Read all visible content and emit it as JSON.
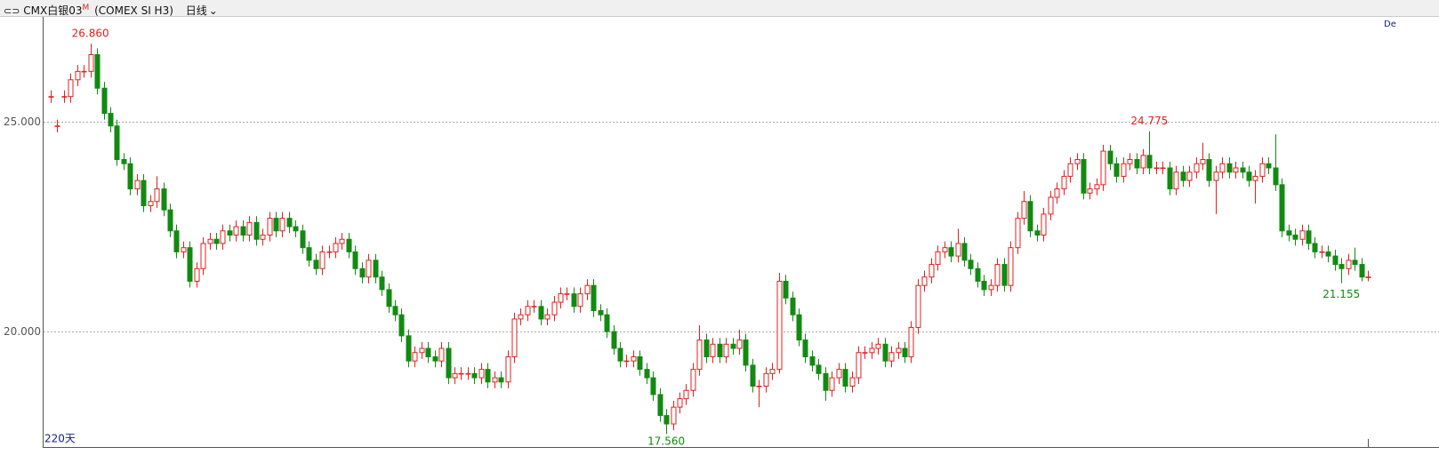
{
  "header": {
    "symbol": "CMX白银03",
    "flag": "M",
    "contract": "(COMEX SI H3)",
    "period": "日线"
  },
  "side_note": "De",
  "chart_data": {
    "type": "candlestick",
    "span_label": "220天",
    "up_color": "#e02020",
    "down_color": "#118a11",
    "ylim": [
      17.25,
      27.52
    ],
    "yticks": [
      {
        "value": 25,
        "label": "25.000"
      },
      {
        "value": 20,
        "label": "20.000"
      }
    ],
    "grid": true,
    "high_labels": [
      {
        "value": 26.86,
        "label": "26.860"
      },
      {
        "value": 24.775,
        "label": "24.775"
      }
    ],
    "low_labels": [
      {
        "value": 17.56,
        "label": "17.560"
      },
      {
        "value": 21.155,
        "label": "21.155"
      }
    ],
    "open": [
      25.6,
      24.9,
      25.6,
      25.6,
      26.0,
      26.2,
      26.2,
      26.6,
      25.8,
      25.2,
      24.9,
      24.1,
      24.0,
      23.4,
      23.6,
      23.0,
      23.1,
      23.4,
      22.9,
      22.4,
      21.9,
      22.0,
      21.2,
      21.5,
      22.1,
      22.2,
      22.1,
      22.4,
      22.3,
      22.5,
      22.3,
      22.6,
      22.2,
      22.3,
      22.7,
      22.4,
      22.7,
      22.5,
      22.4,
      22.0,
      21.7,
      21.5,
      21.9,
      21.9,
      22.1,
      22.2,
      21.9,
      21.5,
      21.3,
      21.7,
      21.3,
      21.0,
      20.6,
      20.4,
      19.9,
      19.3,
      19.5,
      19.6,
      19.4,
      19.3,
      19.6,
      18.9,
      19.0,
      19.0,
      19.0,
      18.9,
      19.1,
      18.8,
      18.9,
      18.8,
      19.4,
      20.3,
      20.4,
      20.6,
      20.6,
      20.3,
      20.4,
      20.7,
      20.9,
      20.9,
      20.6,
      20.9,
      21.1,
      20.5,
      20.4,
      20.0,
      19.6,
      19.3,
      19.3,
      19.4,
      19.1,
      18.9,
      18.5,
      18.0,
      17.8,
      18.2,
      18.4,
      18.6,
      19.1,
      19.8,
      19.4,
      19.7,
      19.4,
      19.7,
      19.6,
      19.8,
      19.2,
      18.7,
      18.7,
      19.0,
      19.1,
      21.2,
      20.8,
      20.4,
      19.8,
      19.4,
      19.2,
      19.0,
      18.6,
      18.9,
      19.1,
      18.7,
      18.9,
      19.5,
      19.5,
      19.6,
      19.7,
      19.3,
      19.5,
      19.6,
      19.4,
      20.1,
      21.1,
      21.3,
      21.6,
      21.9,
      22.0,
      21.8,
      22.1,
      21.7,
      21.5,
      21.2,
      21.0,
      21.1,
      21.6,
      21.1,
      22.0,
      22.7,
      23.1,
      22.4,
      22.3,
      22.8,
      23.2,
      23.4,
      23.7,
      24.0,
      24.1,
      23.3,
      23.4,
      23.5,
      24.3,
      24.0,
      23.7,
      24.0,
      24.1,
      23.9,
      24.2,
      23.9,
      23.9,
      23.9,
      23.4,
      23.8,
      23.6,
      23.8,
      24.0,
      24.1,
      23.6,
      23.8,
      24.0,
      23.8,
      23.9,
      23.8,
      23.6,
      23.7,
      24.0,
      23.9,
      23.5,
      22.4,
      22.3,
      22.2,
      22.4,
      22.1,
      21.9,
      21.9,
      21.8,
      21.6,
      21.5,
      21.7,
      21.6,
      21.3
    ],
    "high": [
      25.75,
      25.05,
      25.75,
      26.15,
      26.35,
      26.35,
      26.86,
      26.75,
      25.95,
      25.35,
      25.05,
      24.25,
      24.15,
      23.75,
      23.75,
      23.25,
      23.7,
      23.55,
      23.05,
      22.55,
      22.15,
      22.15,
      21.65,
      22.25,
      22.35,
      22.35,
      22.55,
      22.55,
      22.65,
      22.65,
      22.75,
      22.75,
      22.45,
      22.85,
      22.85,
      22.85,
      22.85,
      22.65,
      22.55,
      22.15,
      21.85,
      22.05,
      22.05,
      22.25,
      22.35,
      22.35,
      22.05,
      21.65,
      21.85,
      21.85,
      21.45,
      21.15,
      20.75,
      20.55,
      20.05,
      19.65,
      19.75,
      19.75,
      19.55,
      19.75,
      19.75,
      19.15,
      19.15,
      19.15,
      19.15,
      19.25,
      19.25,
      19.05,
      19.05,
      19.55,
      20.45,
      20.55,
      20.75,
      20.75,
      20.75,
      20.55,
      20.85,
      21.05,
      21.05,
      21.05,
      21.05,
      21.25,
      21.25,
      20.65,
      20.55,
      20.15,
      19.75,
      19.45,
      19.55,
      19.55,
      19.25,
      19.05,
      18.65,
      18.15,
      18.35,
      18.55,
      18.75,
      19.25,
      20.15,
      19.95,
      19.85,
      19.85,
      19.85,
      19.85,
      20.05,
      19.95,
      19.35,
      18.85,
      19.15,
      19.25,
      21.4,
      21.35,
      20.95,
      20.55,
      19.95,
      19.55,
      19.35,
      19.15,
      19.05,
      19.25,
      19.25,
      19.05,
      19.65,
      19.65,
      19.75,
      19.85,
      19.85,
      19.65,
      19.75,
      19.75,
      20.25,
      21.25,
      21.45,
      21.75,
      22.05,
      22.15,
      22.15,
      22.45,
      22.25,
      21.85,
      21.65,
      21.35,
      21.25,
      21.75,
      21.75,
      22.15,
      22.85,
      23.35,
      23.25,
      22.55,
      22.95,
      23.35,
      23.55,
      23.85,
      24.15,
      24.25,
      24.25,
      23.55,
      23.65,
      24.45,
      24.45,
      24.15,
      24.15,
      24.25,
      24.25,
      24.35,
      24.775,
      24.05,
      24.05,
      24.05,
      23.95,
      23.95,
      23.95,
      24.15,
      24.5,
      24.25,
      23.95,
      24.15,
      24.15,
      24.05,
      24.05,
      23.95,
      23.85,
      24.15,
      24.15,
      24.7,
      23.65,
      22.55,
      22.45,
      22.55,
      22.55,
      22.25,
      22.05,
      22.05,
      21.95,
      21.75,
      21.85,
      22.0,
      21.75,
      21.45
    ],
    "low": [
      25.45,
      24.75,
      25.45,
      25.45,
      25.85,
      26.05,
      26.05,
      25.65,
      25.05,
      24.75,
      23.95,
      23.85,
      23.25,
      23.25,
      22.85,
      22.85,
      22.95,
      22.75,
      22.25,
      21.75,
      21.75,
      21.05,
      21.05,
      21.35,
      21.95,
      21.95,
      21.95,
      22.15,
      22.15,
      22.15,
      22.15,
      22.05,
      22.05,
      22.15,
      22.25,
      22.25,
      22.35,
      22.25,
      21.85,
      21.55,
      21.35,
      21.35,
      21.75,
      21.75,
      21.95,
      21.75,
      21.35,
      21.15,
      21.15,
      21.15,
      20.85,
      20.45,
      20.25,
      19.75,
      19.15,
      19.15,
      19.35,
      19.25,
      19.15,
      19.15,
      18.75,
      18.75,
      18.85,
      18.85,
      18.75,
      18.75,
      18.65,
      18.65,
      18.65,
      18.65,
      19.25,
      20.15,
      20.25,
      20.45,
      20.15,
      20.15,
      20.25,
      20.55,
      20.75,
      20.45,
      20.45,
      20.75,
      20.35,
      20.25,
      19.85,
      19.45,
      19.15,
      19.15,
      19.15,
      18.95,
      18.75,
      18.35,
      17.85,
      17.56,
      17.65,
      18.05,
      18.25,
      18.45,
      18.95,
      19.25,
      19.25,
      19.25,
      19.25,
      19.45,
      19.45,
      19.05,
      18.55,
      18.2,
      18.55,
      18.85,
      19.0,
      20.65,
      20.25,
      19.65,
      19.25,
      19.05,
      18.85,
      18.35,
      18.45,
      18.75,
      18.55,
      18.55,
      18.75,
      19.35,
      19.35,
      19.45,
      19.15,
      19.15,
      19.35,
      19.25,
      19.25,
      19.95,
      20.95,
      21.15,
      21.45,
      21.75,
      21.65,
      21.65,
      21.55,
      21.35,
      21.05,
      20.85,
      20.85,
      20.95,
      20.95,
      20.95,
      21.85,
      22.55,
      22.25,
      22.15,
      22.15,
      22.65,
      23.05,
      23.25,
      23.55,
      23.85,
      23.15,
      23.15,
      23.25,
      23.35,
      23.85,
      23.55,
      23.55,
      23.85,
      23.75,
      23.75,
      23.75,
      23.75,
      23.75,
      23.25,
      23.25,
      23.45,
      23.45,
      23.65,
      23.85,
      23.45,
      22.8,
      23.65,
      23.65,
      23.65,
      23.65,
      23.45,
      23.05,
      23.55,
      23.75,
      23.35,
      22.25,
      22.15,
      22.05,
      22.05,
      21.95,
      21.75,
      21.75,
      21.65,
      21.45,
      21.155,
      21.35,
      21.45,
      21.2,
      21.2
    ],
    "close": [
      25.6,
      24.9,
      25.6,
      26.0,
      26.2,
      26.2,
      26.6,
      25.8,
      25.2,
      24.9,
      24.1,
      24.0,
      23.4,
      23.6,
      23.0,
      23.1,
      23.4,
      22.9,
      22.4,
      21.9,
      22.0,
      21.2,
      21.5,
      22.1,
      22.2,
      22.1,
      22.4,
      22.3,
      22.5,
      22.3,
      22.6,
      22.2,
      22.3,
      22.7,
      22.4,
      22.7,
      22.5,
      22.4,
      22.0,
      21.7,
      21.5,
      21.9,
      21.9,
      22.1,
      22.2,
      21.9,
      21.5,
      21.3,
      21.7,
      21.3,
      21.0,
      20.6,
      20.4,
      19.9,
      19.3,
      19.5,
      19.6,
      19.4,
      19.3,
      19.6,
      18.9,
      19.0,
      19.0,
      19.0,
      18.9,
      19.1,
      18.8,
      18.9,
      18.8,
      19.4,
      20.3,
      20.4,
      20.6,
      20.6,
      20.3,
      20.4,
      20.7,
      20.9,
      20.9,
      20.6,
      20.9,
      21.1,
      20.5,
      20.4,
      20.0,
      19.6,
      19.3,
      19.3,
      19.4,
      19.1,
      18.9,
      18.5,
      18.0,
      17.8,
      18.2,
      18.4,
      18.6,
      19.1,
      19.8,
      19.4,
      19.7,
      19.4,
      19.7,
      19.6,
      19.8,
      19.2,
      18.7,
      18.7,
      19.0,
      19.1,
      21.2,
      20.8,
      20.4,
      19.8,
      19.4,
      19.2,
      19.0,
      18.6,
      18.9,
      19.1,
      18.7,
      18.9,
      19.5,
      19.5,
      19.6,
      19.7,
      19.3,
      19.5,
      19.6,
      19.4,
      20.1,
      21.1,
      21.3,
      21.6,
      21.9,
      22.0,
      21.8,
      22.1,
      21.7,
      21.5,
      21.2,
      21.0,
      21.1,
      21.6,
      21.1,
      22.0,
      22.7,
      23.1,
      22.4,
      22.3,
      22.8,
      23.2,
      23.4,
      23.7,
      24.0,
      24.1,
      23.3,
      23.4,
      23.5,
      24.3,
      24.0,
      23.7,
      24.0,
      24.1,
      23.9,
      24.2,
      23.9,
      23.9,
      23.9,
      23.4,
      23.8,
      23.6,
      23.8,
      24.0,
      24.1,
      23.6,
      23.8,
      24.0,
      23.8,
      23.9,
      23.8,
      23.6,
      23.7,
      24.0,
      23.9,
      23.5,
      22.4,
      22.3,
      22.2,
      22.4,
      22.1,
      21.9,
      21.9,
      21.8,
      21.6,
      21.5,
      21.7,
      21.6,
      21.3,
      21.3
    ]
  }
}
